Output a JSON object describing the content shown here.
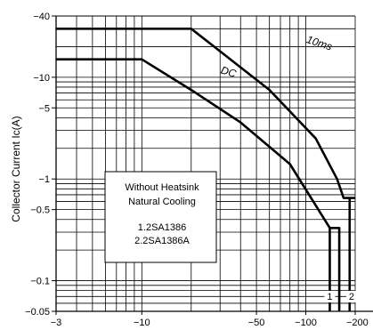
{
  "chart_data": {
    "type": "line",
    "title": "",
    "xlabel": "",
    "ylabel": "Collector Current Iᴄ(A)",
    "x_scale": "log",
    "y_scale": "log",
    "xlim": [
      -3,
      -200
    ],
    "ylim": [
      -0.05,
      -40
    ],
    "x_ticks": [
      {
        "value": -3,
        "label": "−3"
      },
      {
        "value": -10,
        "label": "−10"
      },
      {
        "value": -50,
        "label": "−50"
      },
      {
        "value": -100,
        "label": "−100"
      },
      {
        "value": -200,
        "label": "−200"
      }
    ],
    "y_ticks": [
      {
        "value": -40,
        "label": "−40"
      },
      {
        "value": -10,
        "label": "−10"
      },
      {
        "value": -5,
        "label": "−5"
      },
      {
        "value": -1,
        "label": "−1"
      },
      {
        "value": -0.5,
        "label": "−0.5"
      },
      {
        "value": -0.1,
        "label": "−0.1"
      },
      {
        "value": -0.05,
        "label": "−0.05"
      }
    ],
    "grid": true,
    "series": [
      {
        "name": "10ms",
        "x": [
          -3,
          -20,
          -60,
          -115,
          -155,
          -170,
          -200
        ],
        "y": [
          -30,
          -30,
          -7.5,
          -2.5,
          -1,
          -0.65,
          -0.65
        ]
      },
      {
        "name": "DC",
        "x": [
          -3,
          -10,
          -20,
          -40,
          -80,
          -140,
          -160,
          -160
        ],
        "y": [
          -15,
          -15,
          -7.5,
          -3.6,
          -1.4,
          -0.33,
          -0.33,
          -0.05
        ]
      },
      {
        "name": "",
        "x": [
          -140,
          -140,
          -185,
          -185
        ],
        "y": [
          -0.33,
          -0.05,
          -0.65,
          -0.05
        ]
      }
    ],
    "series_labels": [
      {
        "text": "10ms",
        "x": -100,
        "y": -22
      },
      {
        "text": "DC",
        "x": -30,
        "y": -11
      }
    ],
    "corner_labels": [
      {
        "text": "1",
        "x": -140,
        "y": -0.065
      },
      {
        "text": "2",
        "x": -190,
        "y": -0.065
      }
    ],
    "annotation": {
      "title_line1": "Without Heatsink",
      "title_line2": "Natural Cooling",
      "item1": "1.2SA1386",
      "item2": "2.2SA1386A"
    }
  }
}
